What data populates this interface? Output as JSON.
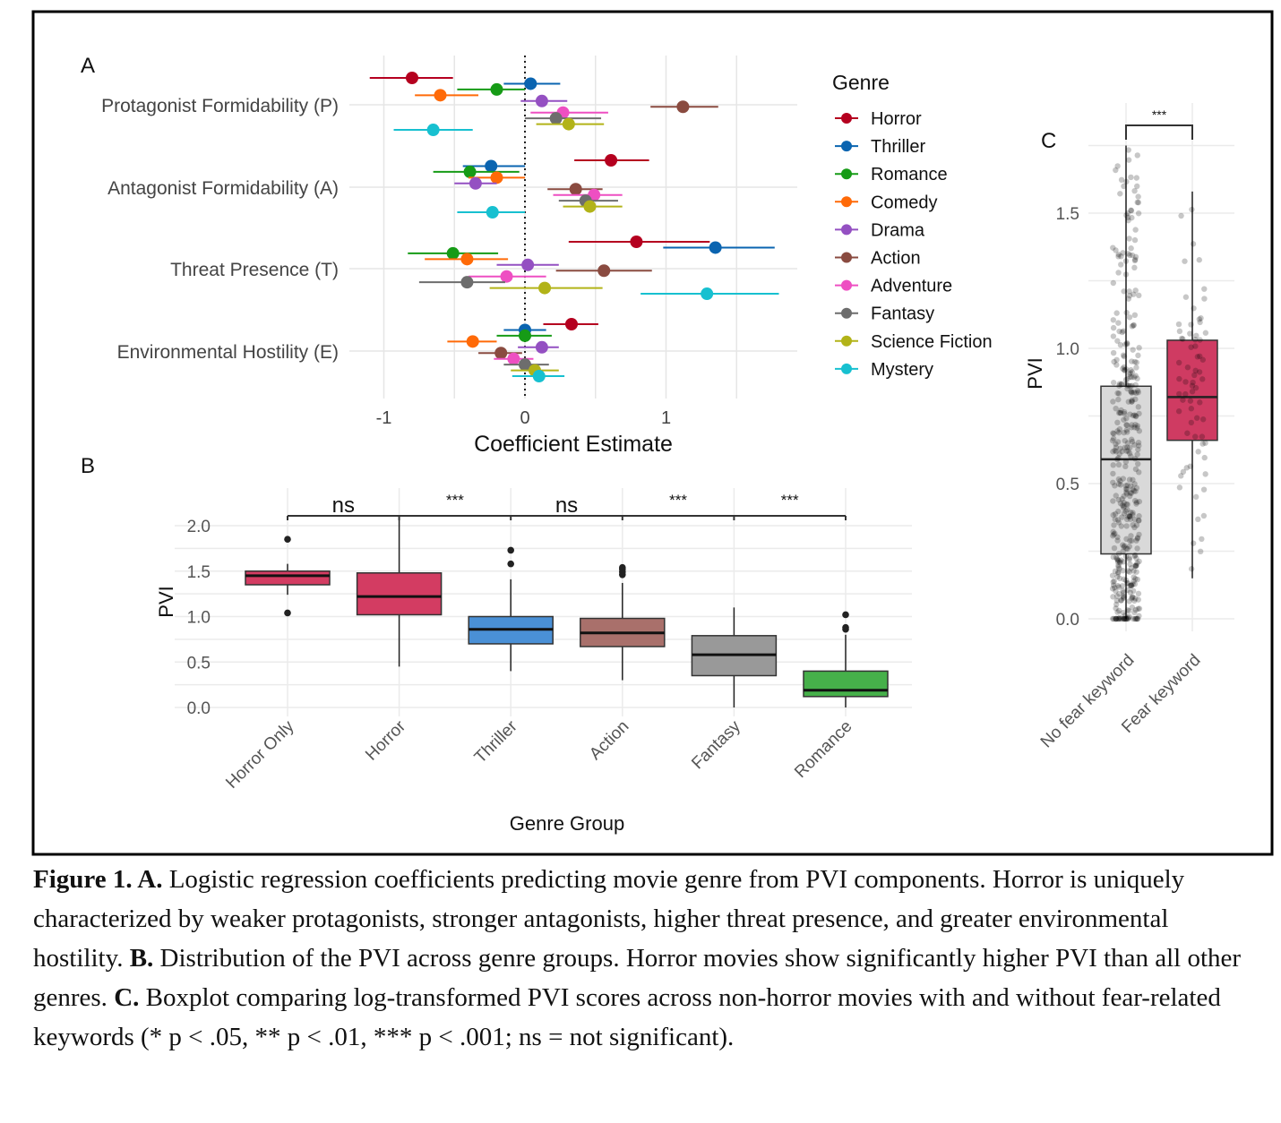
{
  "panel_labels": {
    "a": "A",
    "b": "B",
    "c": "C"
  },
  "caption": {
    "segments": [
      {
        "text": "Figure 1. A.",
        "bold": true
      },
      {
        "text": " Logistic regression coefficients predicting movie genre from PVI components. Horror is uniquely characterized by weaker protagonists, stronger antagonists, higher threat presence, and greater environmental hostility. ",
        "bold": false
      },
      {
        "text": "B.",
        "bold": true
      },
      {
        "text": " Distribution of the PVI across genre groups. Horror movies show significantly higher PVI than all other genres. ",
        "bold": false
      },
      {
        "text": "C.",
        "bold": true
      },
      {
        "text": " Boxplot comparing log-transformed PVI scores across non-horror movies with and without fear-related keywords (* p < .05, ** p < .01, *** p < .001; ns = not significant).",
        "bold": false
      }
    ]
  },
  "chart_data": [
    {
      "type": "scatter",
      "subtype": "coefficient-forest",
      "panel": "A",
      "xlabel": "Coefficient Estimate",
      "ylabel": "",
      "xlim": [
        -1.1,
        1.9
      ],
      "xticks": [
        "-1",
        "0",
        "1"
      ],
      "xtick_values": [
        -1,
        0,
        1
      ],
      "reference_line": 0,
      "categories": [
        "Protagonist Formidability (P)",
        "Antagonist Formidability (A)",
        "Threat Presence (T)",
        "Environmental Hostility (E)"
      ],
      "legend_title": "Genre",
      "legend_position": "right",
      "series": [
        {
          "name": "Horror",
          "color": "#b5001f",
          "estimates": [
            -0.8,
            0.61,
            0.79,
            0.33
          ],
          "ci_low": [
            -1.1,
            0.35,
            0.31,
            0.13
          ],
          "ci_high": [
            -0.51,
            0.88,
            1.31,
            0.52
          ]
        },
        {
          "name": "Thriller",
          "color": "#0a64b0",
          "estimates": [
            0.04,
            -0.24,
            1.35,
            0.0
          ],
          "ci_low": [
            -0.15,
            -0.44,
            0.98,
            -0.15
          ],
          "ci_high": [
            0.25,
            0.0,
            1.77,
            0.15
          ]
        },
        {
          "name": "Romance",
          "color": "#169b16",
          "estimates": [
            -0.2,
            -0.39,
            -0.51,
            0.0
          ],
          "ci_low": [
            -0.48,
            -0.65,
            -0.83,
            -0.2
          ],
          "ci_high": [
            0.0,
            -0.04,
            -0.19,
            0.19
          ]
        },
        {
          "name": "Comedy",
          "color": "#ff6a08",
          "estimates": [
            -0.6,
            -0.2,
            -0.41,
            -0.37
          ],
          "ci_low": [
            -0.78,
            -0.4,
            -0.71,
            -0.55
          ],
          "ci_high": [
            -0.33,
            0.0,
            -0.12,
            -0.2
          ]
        },
        {
          "name": "Drama",
          "color": "#9450c2",
          "estimates": [
            0.12,
            -0.35,
            0.02,
            0.12
          ],
          "ci_low": [
            -0.03,
            -0.5,
            -0.2,
            -0.05
          ],
          "ci_high": [
            0.3,
            -0.2,
            0.24,
            0.24
          ]
        },
        {
          "name": "Action",
          "color": "#8a4b40",
          "estimates": [
            1.12,
            0.36,
            0.56,
            -0.17
          ],
          "ci_low": [
            0.89,
            0.16,
            0.22,
            -0.33
          ],
          "ci_high": [
            1.37,
            0.55,
            0.9,
            -0.02
          ]
        },
        {
          "name": "Adventure",
          "color": "#ee4fc2",
          "estimates": [
            0.27,
            0.49,
            -0.13,
            -0.08
          ],
          "ci_low": [
            0.04,
            0.2,
            -0.4,
            -0.22
          ],
          "ci_high": [
            0.59,
            0.69,
            0.15,
            0.06
          ]
        },
        {
          "name": "Fantasy",
          "color": "#6d6d6d",
          "estimates": [
            0.22,
            0.43,
            -0.41,
            0.0
          ],
          "ci_low": [
            0.0,
            0.24,
            -0.75,
            -0.15
          ],
          "ci_high": [
            0.54,
            0.66,
            -0.14,
            0.17
          ]
        },
        {
          "name": "Science Fiction",
          "color": "#b2b318",
          "estimates": [
            0.31,
            0.46,
            0.14,
            0.07
          ],
          "ci_low": [
            0.08,
            0.27,
            -0.25,
            -0.1
          ],
          "ci_high": [
            0.56,
            0.69,
            0.55,
            0.24
          ]
        },
        {
          "name": "Mystery",
          "color": "#17c0d0",
          "estimates": [
            -0.65,
            -0.23,
            1.29,
            0.1
          ],
          "ci_low": [
            -0.93,
            -0.48,
            0.82,
            -0.09
          ],
          "ci_high": [
            -0.37,
            0.0,
            1.8,
            0.28
          ]
        }
      ]
    },
    {
      "type": "bar",
      "subtype": "boxplot",
      "panel": "B",
      "xlabel": "Genre Group",
      "ylabel": "PVI",
      "ylim": [
        0,
        2.1
      ],
      "yticks": [
        "0.0",
        "0.5",
        "1.0",
        "1.5",
        "2.0"
      ],
      "ytick_values": [
        0,
        0.5,
        1,
        1.5,
        2
      ],
      "categories": [
        "Horror Only",
        "Horror",
        "Thriller",
        "Action",
        "Fantasy",
        "Romance"
      ],
      "boxes": [
        {
          "name": "Horror Only",
          "color": "#d33c62",
          "whisker_low": 1.24,
          "q1": 1.35,
          "median": 1.45,
          "q3": 1.5,
          "whisker_high": 1.58,
          "outliers": [
            1.85,
            1.04
          ]
        },
        {
          "name": "Horror",
          "color": "#d33c62",
          "whisker_low": 0.45,
          "q1": 1.02,
          "median": 1.22,
          "q3": 1.48,
          "whisker_high": 2.1,
          "outliers": []
        },
        {
          "name": "Thriller",
          "color": "#4a90d6",
          "whisker_low": 0.4,
          "q1": 0.7,
          "median": 0.86,
          "q3": 1.0,
          "whisker_high": 1.41,
          "outliers": [
            1.58,
            1.73
          ]
        },
        {
          "name": "Action",
          "color": "#a9706b",
          "whisker_low": 0.3,
          "q1": 0.67,
          "median": 0.82,
          "q3": 0.98,
          "whisker_high": 1.37,
          "outliers": [
            1.46,
            1.49,
            1.52,
            1.54
          ]
        },
        {
          "name": "Fantasy",
          "color": "#999999",
          "whisker_low": 0.0,
          "q1": 0.35,
          "median": 0.58,
          "q3": 0.79,
          "whisker_high": 1.1,
          "outliers": []
        },
        {
          "name": "Romance",
          "color": "#46b04a",
          "whisker_low": 0.0,
          "q1": 0.12,
          "median": 0.19,
          "q3": 0.4,
          "whisker_high": 0.8,
          "outliers": [
            0.86,
            0.88,
            1.02
          ]
        }
      ],
      "comparisons": [
        "ns",
        "***",
        "ns",
        "***",
        "***"
      ]
    },
    {
      "type": "bar",
      "subtype": "boxplot-with-jitter",
      "panel": "C",
      "xlabel": "",
      "ylabel": "PVI",
      "ylim": [
        0,
        1.8
      ],
      "yticks": [
        "0.0",
        "0.5",
        "1.0",
        "1.5"
      ],
      "ytick_values": [
        0,
        0.5,
        1,
        1.5
      ],
      "categories": [
        "No fear keyword",
        "Fear keyword"
      ],
      "boxes": [
        {
          "name": "No fear keyword",
          "color": "#d9d9d9",
          "whisker_low": 0.0,
          "q1": 0.24,
          "median": 0.59,
          "q3": 0.86,
          "whisker_high": 1.75,
          "n_points": 420
        },
        {
          "name": "Fear keyword",
          "color": "#cf3b62",
          "whisker_low": 0.15,
          "q1": 0.66,
          "median": 0.82,
          "q3": 1.03,
          "whisker_high": 1.58,
          "n_points": 70
        }
      ],
      "comparison": "***"
    }
  ]
}
